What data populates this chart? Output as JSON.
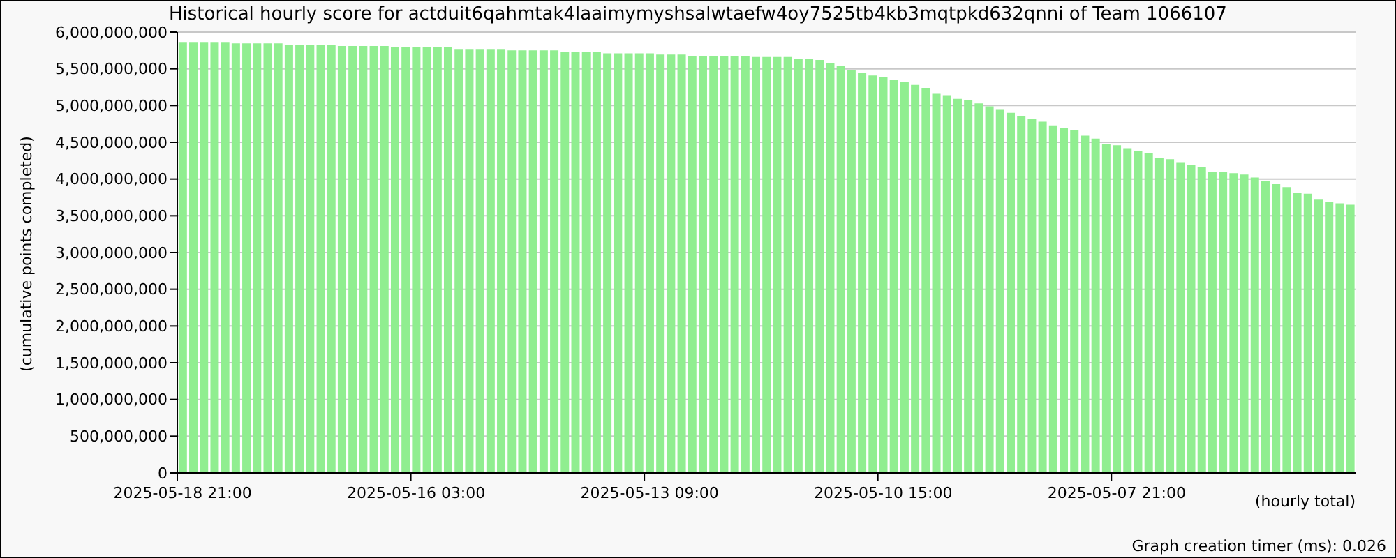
{
  "chart_data": {
    "type": "bar",
    "title": "Historical hourly score for actduit6qahmtak4laaimymyshsalwtaefw4oy7525tb4kb3mqtpkd632qnni of Team 1066107",
    "xlabel": "(hourly total)",
    "ylabel": "(cumulative points completed)",
    "annotations": [
      "Graph creation timer (ms): 0.026"
    ],
    "categories": [
      "2025-05-18 21:00",
      null,
      null,
      null,
      null,
      null,
      null,
      null,
      null,
      null,
      null,
      null,
      null,
      null,
      null,
      null,
      null,
      null,
      null,
      null,
      null,
      null,
      "2025-05-16 03:00",
      null,
      null,
      null,
      null,
      null,
      null,
      null,
      null,
      null,
      null,
      null,
      null,
      null,
      null,
      null,
      null,
      null,
      null,
      null,
      null,
      null,
      "2025-05-13 09:00",
      null,
      null,
      null,
      null,
      null,
      null,
      null,
      null,
      null,
      null,
      null,
      null,
      null,
      null,
      null,
      null,
      null,
      null,
      null,
      null,
      null,
      "2025-05-10 15:00",
      null,
      null,
      null,
      null,
      null,
      null,
      null,
      null,
      null,
      null,
      null,
      null,
      null,
      null,
      null,
      null,
      null,
      null,
      null,
      null,
      null,
      "2025-05-07 21:00",
      null,
      null,
      null,
      null,
      null,
      null,
      null,
      null,
      null,
      null,
      null,
      null,
      null,
      null,
      null,
      null,
      null,
      null,
      null,
      null,
      null,
      null
    ],
    "values": [
      5865000000,
      5865000000,
      5865000000,
      5865000000,
      5865000000,
      5845000000,
      5845000000,
      5845000000,
      5845000000,
      5845000000,
      5830000000,
      5830000000,
      5830000000,
      5830000000,
      5830000000,
      5810000000,
      5810000000,
      5810000000,
      5810000000,
      5810000000,
      5790000000,
      5790000000,
      5790000000,
      5790000000,
      5790000000,
      5790000000,
      5770000000,
      5770000000,
      5770000000,
      5770000000,
      5770000000,
      5750000000,
      5750000000,
      5750000000,
      5750000000,
      5750000000,
      5730000000,
      5730000000,
      5730000000,
      5730000000,
      5710000000,
      5710000000,
      5710000000,
      5710000000,
      5710000000,
      5695000000,
      5695000000,
      5695000000,
      5675000000,
      5675000000,
      5675000000,
      5675000000,
      5675000000,
      5675000000,
      5660000000,
      5660000000,
      5660000000,
      5660000000,
      5640000000,
      5640000000,
      5620000000,
      5580000000,
      5540000000,
      5480000000,
      5450000000,
      5410000000,
      5390000000,
      5350000000,
      5320000000,
      5280000000,
      5240000000,
      5160000000,
      5140000000,
      5090000000,
      5070000000,
      5030000000,
      4990000000,
      4950000000,
      4900000000,
      4860000000,
      4820000000,
      4780000000,
      4730000000,
      4690000000,
      4670000000,
      4590000000,
      4550000000,
      4480000000,
      4460000000,
      4420000000,
      4380000000,
      4350000000,
      4290000000,
      4270000000,
      4230000000,
      4190000000,
      4160000000,
      4100000000,
      4100000000,
      4080000000,
      4060000000,
      4020000000,
      3970000000,
      3930000000,
      3890000000,
      3810000000,
      3800000000,
      3720000000,
      3690000000,
      3670000000,
      3650000000
    ],
    "color": "#90ee90",
    "ylim": [
      0,
      6000000000
    ],
    "yticks": [
      0,
      {
        "value": 500000000,
        "label": "500,000,000"
      },
      {
        "value": 1000000000,
        "label": "1,000,000,000"
      },
      {
        "value": 1500000000,
        "label": "1,500,000,000"
      },
      {
        "value": 2000000000,
        "label": "2,000,000,000"
      },
      {
        "value": 2500000000,
        "label": "2,500,000,000"
      },
      {
        "value": 3000000000,
        "label": "3,000,000,000"
      },
      {
        "value": 3500000000,
        "label": "3,500,000,000"
      },
      {
        "value": 4000000000,
        "label": "4,000,000,000"
      },
      {
        "value": 4500000000,
        "label": "4,500,000,000"
      },
      {
        "value": 5000000000,
        "label": "5,000,000,000"
      },
      {
        "value": 5500000000,
        "label": "5,500,000,000"
      },
      {
        "value": 6000000000,
        "label": "6,000,000,000"
      }
    ],
    "grid": "y"
  }
}
